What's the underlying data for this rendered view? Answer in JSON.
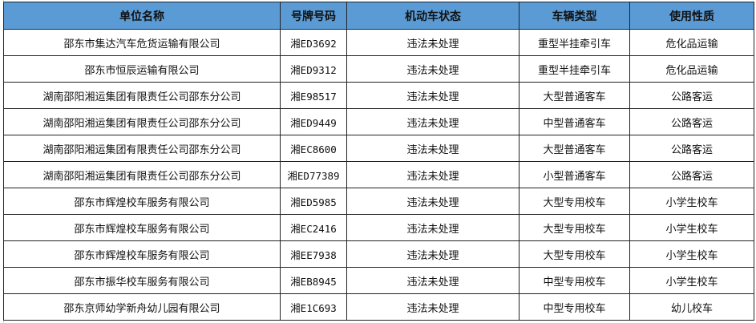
{
  "headers": [
    "单位名称",
    "号牌号码",
    "机动车状态",
    "车辆类型",
    "使用性质"
  ],
  "rows": [
    [
      "邵东市集达汽车危货运输有限公司",
      "湘ED3692",
      "违法未处理",
      "重型半挂牵引车",
      "危化品运输"
    ],
    [
      "邵东市恒辰运输有限公司",
      "湘ED9312",
      "违法未处理",
      "重型半挂牵引车",
      "危化品运输"
    ],
    [
      "湖南邵阳湘运集团有限责任公司邵东分公司",
      "湘E98517",
      "违法未处理",
      "大型普通客车",
      "公路客运"
    ],
    [
      "湖南邵阳湘运集团有限责任公司邵东分公司",
      "湘ED9449",
      "违法未处理",
      "中型普通客车",
      "公路客运"
    ],
    [
      "湖南邵阳湘运集团有限责任公司邵东分公司",
      "湘EC8600",
      "违法未处理",
      "大型普通客车",
      "公路客运"
    ],
    [
      "湖南邵阳湘运集团有限责任公司邵东分公司",
      "湘ED77389",
      "违法未处理",
      "小型普通客车",
      "公路客运"
    ],
    [
      "邵东市辉煌校车服务有限公司",
      "湘ED5985",
      "违法未处理",
      "大型专用校车",
      "小学生校车"
    ],
    [
      "邵东市辉煌校车服务有限公司",
      "湘EC2416",
      "违法未处理",
      "大型专用校车",
      "小学生校车"
    ],
    [
      "邵东市辉煌校车服务有限公司",
      "湘EE7938",
      "违法未处理",
      "大型专用校车",
      "小学生校车"
    ],
    [
      "邵东市振华校车服务有限公司",
      "湘EB8945",
      "违法未处理",
      "中型专用校车",
      "小学生校车"
    ],
    [
      "邵东京师幼学新舟幼儿园有限公司",
      "湘E1C693",
      "违法未处理",
      "中型专用校车",
      "幼儿校车"
    ]
  ],
  "colors": {
    "header_bg": "#5b9bd5"
  }
}
